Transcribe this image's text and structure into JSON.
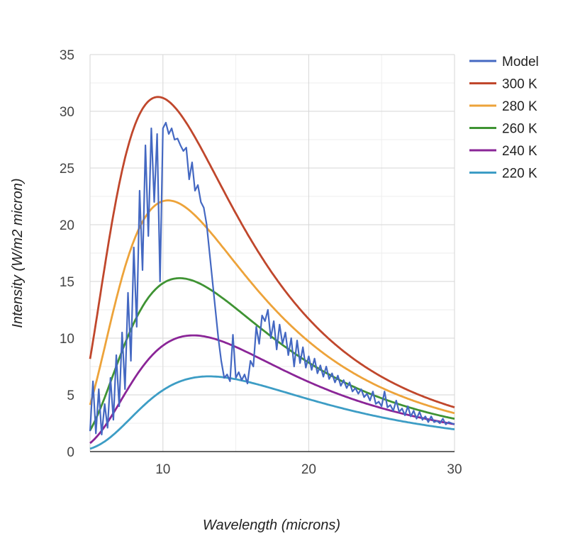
{
  "chart_data": {
    "type": "line",
    "title": "",
    "xlabel": "Wavelength (microns)",
    "ylabel": "Intensity (W/m2 micron)",
    "xlim": [
      5,
      30
    ],
    "ylim": [
      0,
      35
    ],
    "x_ticks": [
      10,
      20,
      30
    ],
    "x_tick_labels": [
      "10",
      "20",
      "30"
    ],
    "y_ticks": [
      0,
      5,
      10,
      15,
      20,
      25,
      30,
      35
    ],
    "y_tick_labels": [
      "0",
      "5",
      "10",
      "15",
      "20",
      "25",
      "30",
      "35"
    ],
    "grid": true,
    "legend_position": "right",
    "series": [
      {
        "name": "Model",
        "color": "#4468c2",
        "x": [
          5,
          5.2,
          5.4,
          5.6,
          5.8,
          6,
          6.2,
          6.4,
          6.6,
          6.8,
          7,
          7.2,
          7.4,
          7.6,
          7.8,
          8,
          8.2,
          8.4,
          8.6,
          8.8,
          9,
          9.2,
          9.4,
          9.6,
          9.8,
          10,
          10.2,
          10.4,
          10.6,
          10.8,
          11,
          11.2,
          11.4,
          11.6,
          11.8,
          12,
          12.2,
          12.4,
          12.6,
          12.8,
          13,
          13.2,
          13.4,
          13.6,
          13.8,
          14,
          14.2,
          14.4,
          14.6,
          14.8,
          15,
          15.2,
          15.4,
          15.6,
          15.8,
          16,
          16.2,
          16.4,
          16.6,
          16.8,
          17,
          17.2,
          17.4,
          17.6,
          17.8,
          18,
          18.2,
          18.4,
          18.6,
          18.8,
          19,
          19.2,
          19.4,
          19.6,
          19.8,
          20,
          20.2,
          20.4,
          20.6,
          20.8,
          21,
          21.2,
          21.4,
          21.6,
          21.8,
          22,
          22.2,
          22.4,
          22.6,
          22.8,
          23,
          23.2,
          23.4,
          23.6,
          23.8,
          24,
          24.2,
          24.4,
          24.6,
          24.8,
          25,
          25.2,
          25.4,
          25.6,
          25.8,
          26,
          26.2,
          26.4,
          26.6,
          26.8,
          27,
          27.2,
          27.4,
          27.6,
          27.8,
          28,
          28.2,
          28.4,
          28.6,
          28.8,
          29,
          29.2,
          29.4,
          29.6,
          29.8,
          30
        ],
        "y": [
          1.8,
          6.2,
          1.6,
          5.5,
          1.5,
          4.2,
          2.1,
          6.5,
          2.8,
          8.5,
          4,
          10.5,
          5.5,
          14,
          8,
          18,
          11,
          23,
          16,
          27,
          19,
          28.5,
          22,
          28,
          15,
          28.5,
          29,
          28,
          28.5,
          27.5,
          27.6,
          27,
          26.5,
          26.8,
          24,
          25.5,
          23,
          23.5,
          22,
          21.5,
          20,
          17.5,
          15,
          12.5,
          10,
          8,
          6.5,
          6.8,
          6.2,
          10.3,
          6.5,
          7,
          6.3,
          6.8,
          6,
          8,
          7.5,
          11,
          9.5,
          12,
          11.5,
          12.5,
          10,
          11.5,
          9,
          11.2,
          9.5,
          10.5,
          8.5,
          10,
          7.5,
          9.8,
          7.8,
          9.2,
          7.4,
          8.4,
          7.2,
          8.2,
          6.9,
          7.6,
          6.6,
          7.5,
          6.4,
          6.9,
          6.1,
          6.7,
          5.8,
          6.3,
          5.6,
          6.1,
          5.3,
          5.6,
          5.1,
          5.5,
          4.8,
          5.1,
          4.5,
          5.3,
          4.2,
          4.4,
          4,
          5.3,
          3.9,
          4.1,
          3.6,
          4.5,
          3.5,
          3.8,
          3.2,
          4,
          3.1,
          3.6,
          2.9,
          3.5,
          2.8,
          3.1,
          2.6,
          3.1,
          2.6,
          2.7,
          2.5,
          2.9,
          2.4,
          2.6,
          2.5,
          2.4
        ]
      },
      {
        "name": "300 K",
        "color": "#c0472c",
        "temperature_K": 300,
        "x": [],
        "y": []
      },
      {
        "name": "280 K",
        "color": "#eda33a",
        "temperature_K": 280,
        "x": [],
        "y": []
      },
      {
        "name": "260 K",
        "color": "#3f9333",
        "temperature_K": 260,
        "x": [],
        "y": []
      },
      {
        "name": "240 K",
        "color": "#8a2597",
        "temperature_K": 240,
        "x": [],
        "y": []
      },
      {
        "name": "220 K",
        "color": "#3d9dc5",
        "temperature_K": 220,
        "x": [],
        "y": []
      }
    ]
  }
}
